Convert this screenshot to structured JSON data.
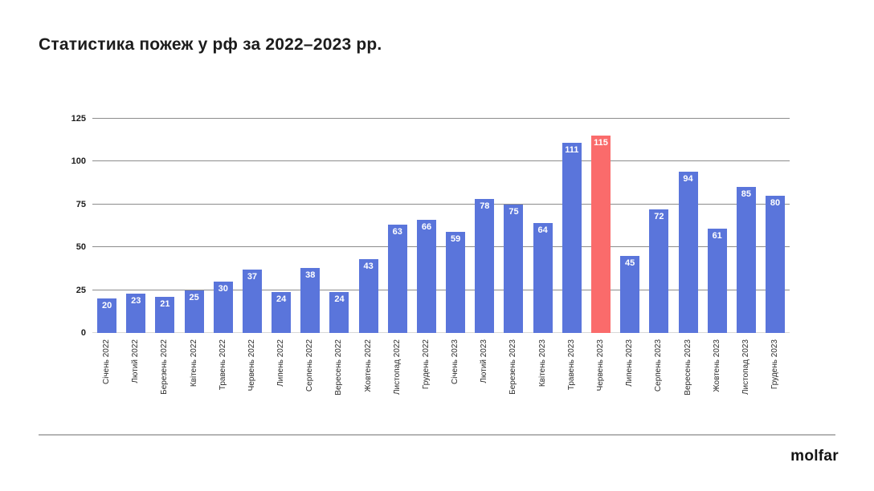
{
  "title": "Статистика пожеж у рф за 2022–2023 рр.",
  "logo": "molfar",
  "chart_data": {
    "type": "bar",
    "title": "Статистика пожеж у рф за 2022–2023 рр.",
    "xlabel": "",
    "ylabel": "",
    "categories": [
      "Січень 2022",
      "Лютий 2022",
      "Березень 2022",
      "Квітень 2022",
      "Травень 2022",
      "Червень 2022",
      "Липень 2022",
      "Серпень 2022",
      "Вересень 2022",
      "Жовтень 2022",
      "Листопад 2022",
      "Грудень 2022",
      "Січень 2023",
      "Лютий 2023",
      "Березень 2023",
      "Квітень 2023",
      "Травень 2023",
      "Червень 2023",
      "Липень 2023",
      "Серпень 2023",
      "Вересень 2023",
      "Жовтень 2023",
      "Листопад 2023",
      "Грудень 2023"
    ],
    "values": [
      20,
      23,
      21,
      25,
      30,
      37,
      24,
      38,
      24,
      43,
      63,
      66,
      59,
      78,
      75,
      64,
      111,
      115,
      45,
      72,
      94,
      61,
      85,
      80
    ],
    "highlight_index": 17,
    "highlight_category": "Червень 2023",
    "bar_color": "#5A75DB",
    "highlight_color": "#FA6B6B",
    "value_label_color": "#ffffff",
    "ylim": [
      0,
      125
    ],
    "yticks": [
      0,
      25,
      50,
      75,
      100,
      125
    ],
    "grid": "horizontal",
    "legend": "none",
    "value_labels_position": "inside-top"
  }
}
